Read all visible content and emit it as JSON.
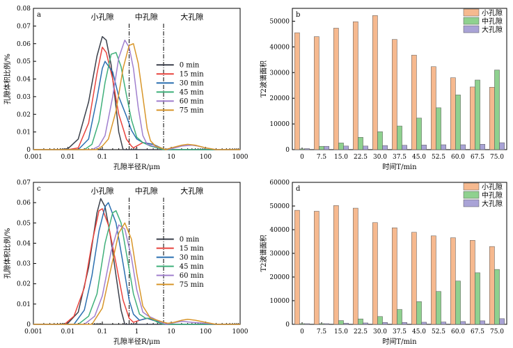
{
  "colors": {
    "series": [
      "#3a3f4a",
      "#e8433d",
      "#2a6fb0",
      "#3fb07a",
      "#a07fce",
      "#d8962a"
    ],
    "bars": [
      "#f6b98f",
      "#8fd18f",
      "#a9a3d6"
    ]
  },
  "chart_data": [
    {
      "panel": "a",
      "type": "line",
      "xscale": "log",
      "xlim": [
        0.001,
        1000
      ],
      "ylim": [
        0,
        0.08
      ],
      "xticks": [
        "0.001",
        "0.01",
        "0.1",
        "1",
        "10",
        "100",
        "1000"
      ],
      "yticks": [
        "0",
        "0.01",
        "0.02",
        "0.03",
        "0.04",
        "0.05",
        "0.06",
        "0.07",
        "0.08"
      ],
      "xlabel": "孔隙半径R/μm",
      "ylabel": "孔隙体积比例/%",
      "region_labels": [
        "小孔隙",
        "中孔隙",
        "大孔隙"
      ],
      "boundaries": [
        0.6,
        6
      ],
      "legend_position": "right",
      "series": [
        {
          "name": "0 min",
          "x": [
            0.001,
            0.005,
            0.01,
            0.02,
            0.04,
            0.07,
            0.1,
            0.13,
            0.18,
            0.25,
            0.3,
            0.4,
            1,
            10,
            100,
            1000
          ],
          "y": [
            0,
            0,
            0.0005,
            0.006,
            0.027,
            0.053,
            0.064,
            0.062,
            0.048,
            0.024,
            0.01,
            0,
            0,
            0,
            0,
            0
          ]
        },
        {
          "name": "15 min",
          "x": [
            0.001,
            0.01,
            0.02,
            0.04,
            0.07,
            0.1,
            0.13,
            0.2,
            0.3,
            0.5,
            0.7,
            0.8,
            1.5,
            3,
            5,
            6,
            10,
            30,
            100,
            1000
          ],
          "y": [
            0,
            0,
            0.001,
            0.015,
            0.043,
            0.058,
            0.055,
            0.04,
            0.02,
            0.006,
            0.002,
            0.001,
            0.004,
            0.003,
            0.001,
            0,
            0,
            0,
            0,
            0
          ]
        },
        {
          "name": "30 min",
          "x": [
            0.001,
            0.02,
            0.04,
            0.07,
            0.1,
            0.12,
            0.2,
            0.3,
            0.5,
            0.7,
            1,
            1.5,
            3,
            5,
            6,
            10,
            30,
            100,
            1000
          ],
          "y": [
            0,
            0,
            0.006,
            0.029,
            0.046,
            0.05,
            0.044,
            0.03,
            0.019,
            0.011,
            0.006,
            0.004,
            0.003,
            0.001,
            0,
            0,
            0,
            0,
            0
          ]
        },
        {
          "name": "45 min",
          "x": [
            0.001,
            0.03,
            0.05,
            0.08,
            0.12,
            0.18,
            0.25,
            0.35,
            0.5,
            0.7,
            1,
            1.5,
            2.5,
            4,
            6,
            10,
            30,
            100,
            1000
          ],
          "y": [
            0,
            0,
            0.003,
            0.016,
            0.038,
            0.054,
            0.055,
            0.047,
            0.031,
            0.017,
            0.007,
            0.004,
            0.002,
            0.001,
            0,
            0,
            0,
            0,
            0
          ]
        },
        {
          "name": "60 min",
          "x": [
            0.001,
            0.05,
            0.08,
            0.12,
            0.2,
            0.3,
            0.45,
            0.6,
            0.8,
            1.1,
            1.5,
            2,
            3,
            5,
            7,
            10,
            20,
            40,
            60,
            100,
            200,
            1000
          ],
          "y": [
            0,
            0,
            0.002,
            0.008,
            0.03,
            0.052,
            0.062,
            0.058,
            0.046,
            0.024,
            0.008,
            0.003,
            0.002,
            0.001,
            0,
            0.0005,
            0.002,
            0.0025,
            0.002,
            0.001,
            0,
            0
          ]
        },
        {
          "name": "75 min",
          "x": [
            0.001,
            0.07,
            0.1,
            0.15,
            0.25,
            0.4,
            0.6,
            0.8,
            1.1,
            1.5,
            2,
            2.5,
            3.5,
            5,
            7,
            10,
            20,
            30,
            50,
            100,
            200,
            1000
          ],
          "y": [
            0,
            0,
            0.002,
            0.006,
            0.022,
            0.046,
            0.059,
            0.06,
            0.049,
            0.03,
            0.012,
            0.005,
            0.002,
            0.001,
            0,
            0.001,
            0.0025,
            0.003,
            0.0025,
            0.001,
            0,
            0
          ]
        }
      ]
    },
    {
      "panel": "b",
      "type": "bar",
      "categories": [
        "0",
        "7.5",
        "15.0",
        "22.5",
        "30.0",
        "37.5",
        "45.0",
        "52.5",
        "60.0",
        "67.5",
        "75.0"
      ],
      "ylim": [
        0,
        55000
      ],
      "yticks": [
        "0",
        "10000",
        "20000",
        "30000",
        "40000",
        "50000"
      ],
      "xlabel": "时间T/min",
      "ylabel": "T2波谱面积",
      "legend_position": "top-right",
      "series": [
        {
          "name": "小孔隙",
          "values": [
            45500,
            44000,
            47300,
            49800,
            52200,
            42900,
            36800,
            32300,
            28000,
            24400,
            24300
          ]
        },
        {
          "name": "中孔隙",
          "values": [
            300,
            1300,
            2600,
            4800,
            7000,
            9200,
            12300,
            16300,
            21300,
            27100,
            31000
          ]
        },
        {
          "name": "大孔隙",
          "values": [
            400,
            1300,
            1400,
            1400,
            1600,
            1700,
            1800,
            1900,
            1900,
            2100,
            2700
          ]
        }
      ]
    },
    {
      "panel": "c",
      "type": "line",
      "xscale": "log",
      "xlim": [
        0.001,
        1000
      ],
      "ylim": [
        0,
        0.07
      ],
      "xticks": [
        "0.001",
        "0.01",
        "0.1",
        "1",
        "10",
        "100",
        "1000"
      ],
      "yticks": [
        "0",
        "0.01",
        "0.02",
        "0.03",
        "0.04",
        "0.05",
        "0.06",
        "0.07"
      ],
      "xlabel": "孔隙半径R/μm",
      "ylabel": "孔隙体积比例/%",
      "region_labels": [
        "小孔隙",
        "中孔隙",
        "大孔隙"
      ],
      "boundaries": [
        0.6,
        6
      ],
      "legend_position": "right",
      "series": [
        {
          "name": "0 min",
          "x": [
            0.001,
            0.005,
            0.01,
            0.02,
            0.04,
            0.07,
            0.09,
            0.12,
            0.17,
            0.25,
            0.35,
            0.45,
            1,
            10,
            100,
            1000
          ],
          "y": [
            0,
            0,
            0.0005,
            0.006,
            0.028,
            0.055,
            0.062,
            0.058,
            0.044,
            0.024,
            0.007,
            0,
            0,
            0,
            0,
            0
          ]
        },
        {
          "name": "15 min",
          "x": [
            0.001,
            0.008,
            0.015,
            0.03,
            0.05,
            0.08,
            0.1,
            0.15,
            0.25,
            0.4,
            0.6,
            0.8,
            1.2,
            2,
            3,
            5,
            6,
            10,
            100,
            1000
          ],
          "y": [
            0,
            0,
            0.004,
            0.018,
            0.04,
            0.056,
            0.057,
            0.049,
            0.03,
            0.012,
            0.003,
            0.001,
            0.002,
            0.003,
            0.002,
            0.001,
            0,
            0,
            0,
            0
          ]
        },
        {
          "name": "30 min",
          "x": [
            0.001,
            0.015,
            0.03,
            0.05,
            0.08,
            0.12,
            0.15,
            0.25,
            0.4,
            0.6,
            0.8,
            1.2,
            2,
            3,
            5,
            6,
            10,
            100,
            1000
          ],
          "y": [
            0,
            0,
            0.007,
            0.024,
            0.046,
            0.058,
            0.06,
            0.05,
            0.03,
            0.012,
            0.005,
            0.002,
            0.003,
            0.002,
            0.001,
            0,
            0,
            0,
            0
          ]
        },
        {
          "name": "45 min",
          "x": [
            0.001,
            0.02,
            0.04,
            0.07,
            0.12,
            0.2,
            0.25,
            0.35,
            0.5,
            0.8,
            1.2,
            1.8,
            2.5,
            4,
            6,
            10,
            100,
            1000
          ],
          "y": [
            0,
            0,
            0.004,
            0.015,
            0.04,
            0.055,
            0.056,
            0.05,
            0.035,
            0.015,
            0.005,
            0.003,
            0.003,
            0.001,
            0,
            0,
            0,
            0
          ]
        },
        {
          "name": "60 min",
          "x": [
            0.001,
            0.03,
            0.06,
            0.1,
            0.18,
            0.3,
            0.45,
            0.7,
            1,
            1.5,
            2.2,
            3,
            5,
            7,
            10,
            20,
            40,
            100,
            200,
            1000
          ],
          "y": [
            0,
            0,
            0.004,
            0.014,
            0.036,
            0.049,
            0.047,
            0.033,
            0.017,
            0.006,
            0.004,
            0.003,
            0.001,
            0,
            0.0005,
            0.0015,
            0.001,
            0.0005,
            0,
            0
          ]
        },
        {
          "name": "75 min",
          "x": [
            0.001,
            0.05,
            0.1,
            0.18,
            0.3,
            0.45,
            0.7,
            1,
            1.5,
            2.5,
            4,
            6,
            8,
            12,
            20,
            30,
            50,
            100,
            200,
            1000
          ],
          "y": [
            0,
            0,
            0.008,
            0.028,
            0.045,
            0.05,
            0.042,
            0.025,
            0.009,
            0.003,
            0.002,
            0.001,
            0.0005,
            0.001,
            0.002,
            0.0025,
            0.002,
            0.001,
            0,
            0
          ]
        }
      ]
    },
    {
      "panel": "d",
      "type": "bar",
      "categories": [
        "0",
        "7.5",
        "15.0",
        "22.5",
        "30.0",
        "37.5",
        "45.0",
        "52.5",
        "60.0",
        "67.5",
        "75.0"
      ],
      "ylim": [
        0,
        60000
      ],
      "yticks": [
        "0",
        "10000",
        "20000",
        "30000",
        "40000",
        "50000",
        "60000"
      ],
      "xlabel": "时间T/min",
      "ylabel": "T2波谱面积",
      "legend_position": "top-right",
      "series": [
        {
          "name": "小孔隙",
          "values": [
            48200,
            47800,
            50200,
            49100,
            43000,
            40800,
            38900,
            37400,
            36600,
            35500,
            32900
          ]
        },
        {
          "name": "中孔隙",
          "values": [
            300,
            300,
            1600,
            2300,
            3300,
            6300,
            9600,
            13900,
            18300,
            21800,
            23200
          ]
        },
        {
          "name": "大孔隙",
          "values": [
            300,
            300,
            500,
            600,
            800,
            800,
            900,
            1000,
            1200,
            1500,
            2400
          ]
        }
      ]
    }
  ]
}
